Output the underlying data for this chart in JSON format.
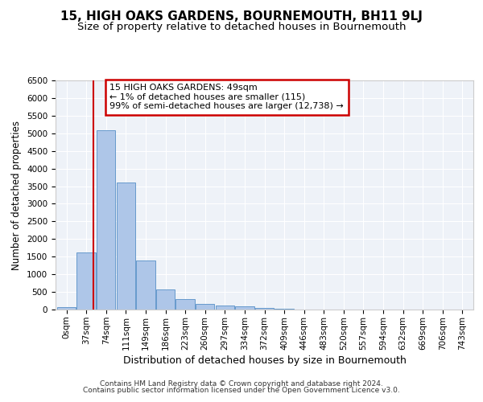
{
  "title": "15, HIGH OAKS GARDENS, BOURNEMOUTH, BH11 9LJ",
  "subtitle": "Size of property relative to detached houses in Bournemouth",
  "xlabel": "Distribution of detached houses by size in Bournemouth",
  "ylabel": "Number of detached properties",
  "bin_labels": [
    "0sqm",
    "37sqm",
    "74sqm",
    "111sqm",
    "149sqm",
    "186sqm",
    "223sqm",
    "260sqm",
    "297sqm",
    "334sqm",
    "372sqm",
    "409sqm",
    "446sqm",
    "483sqm",
    "520sqm",
    "557sqm",
    "594sqm",
    "632sqm",
    "669sqm",
    "706sqm",
    "743sqm"
  ],
  "bar_heights": [
    70,
    1630,
    5080,
    3600,
    1400,
    580,
    300,
    155,
    120,
    90,
    50,
    30,
    10,
    5,
    3,
    1,
    0,
    0,
    0,
    0,
    0
  ],
  "bar_color": "#aec6e8",
  "bar_edge_color": "#6699cc",
  "vline_x": 1.35,
  "vline_color": "#cc0000",
  "annotation_text": "15 HIGH OAKS GARDENS: 49sqm\n← 1% of detached houses are smaller (115)\n99% of semi-detached houses are larger (12,738) →",
  "annotation_box_color": "#cc0000",
  "ylim": [
    0,
    6500
  ],
  "yticks": [
    0,
    500,
    1000,
    1500,
    2000,
    2500,
    3000,
    3500,
    4000,
    4500,
    5000,
    5500,
    6000,
    6500
  ],
  "footer_line1": "Contains HM Land Registry data © Crown copyright and database right 2024.",
  "footer_line2": "Contains public sector information licensed under the Open Government Licence v3.0.",
  "bg_color": "#eef2f8",
  "grid_color": "#ffffff",
  "title_fontsize": 11,
  "subtitle_fontsize": 9.5,
  "xlabel_fontsize": 9,
  "ylabel_fontsize": 8.5,
  "tick_fontsize": 7.5,
  "footer_fontsize": 6.5
}
